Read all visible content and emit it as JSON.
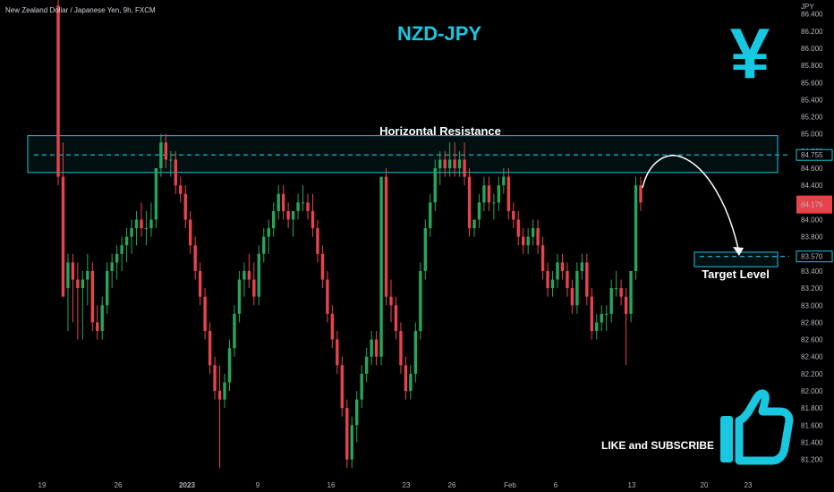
{
  "header": {
    "symbol": "New Zealand Dollar / Japanese Yen, 9h, FXCM",
    "title": "NZD-JPY",
    "currency": "JPY"
  },
  "annotations": {
    "resistance": "Horizontal Resistance",
    "target": "Target Level",
    "cta": "LIKE and SUBSCRIBE",
    "yen_glyph": "¥"
  },
  "price_labels": {
    "resistance_price": "84.755",
    "current_price": "84.176",
    "target_price": "83.570"
  },
  "colors": {
    "accent": "#18c7e0",
    "up": "#26a65b",
    "down": "#e8434a",
    "current_label": "#e8434a"
  },
  "chart_data": {
    "type": "candlestick",
    "title": "NZD-JPY",
    "ylabel": "JPY",
    "ylim": [
      81.05,
      86.48
    ],
    "y_ticks": [
      "81.200",
      "81.400",
      "81.600",
      "81.800",
      "82.000",
      "82.200",
      "82.400",
      "82.600",
      "82.800",
      "83.000",
      "83.200",
      "83.400",
      "83.600",
      "83.800",
      "84.000",
      "84.200",
      "84.400",
      "84.600",
      "84.800",
      "85.000",
      "85.200",
      "85.400",
      "85.600",
      "85.800",
      "86.000",
      "86.200",
      "86.400"
    ],
    "x_ticks": [
      "19",
      "26",
      "2023",
      "9",
      "16",
      "23",
      "26",
      "Feb",
      "6",
      "13",
      "20",
      "23"
    ],
    "resistance_zone": [
      84.55,
      84.98
    ],
    "resistance_level": 84.755,
    "target_zone": [
      83.45,
      83.62
    ],
    "target_level": 83.57,
    "current_price": 84.176,
    "candles": [
      [
        86.5,
        86.8,
        84.4,
        84.5
      ],
      [
        84.5,
        84.9,
        83.1,
        83.1
      ],
      [
        83.2,
        83.6,
        82.7,
        83.5
      ],
      [
        83.5,
        83.6,
        82.8,
        83.3
      ],
      [
        83.3,
        83.5,
        82.6,
        83.2
      ],
      [
        83.2,
        83.4,
        82.6,
        83.3
      ],
      [
        83.3,
        83.6,
        83.0,
        83.4
      ],
      [
        83.4,
        83.5,
        82.7,
        82.8
      ],
      [
        82.8,
        83.0,
        82.6,
        82.7
      ],
      [
        82.7,
        83.1,
        82.6,
        83.0
      ],
      [
        83.0,
        83.5,
        82.9,
        83.4
      ],
      [
        83.4,
        83.6,
        83.2,
        83.5
      ],
      [
        83.5,
        83.7,
        83.3,
        83.6
      ],
      [
        83.6,
        83.8,
        83.4,
        83.7
      ],
      [
        83.7,
        83.9,
        83.5,
        83.8
      ],
      [
        83.8,
        84.0,
        83.6,
        83.9
      ],
      [
        83.9,
        84.1,
        83.7,
        84.0
      ],
      [
        84.0,
        84.2,
        83.8,
        83.9
      ],
      [
        83.9,
        84.1,
        83.7,
        83.9
      ],
      [
        83.9,
        84.2,
        83.8,
        84.0
      ],
      [
        84.0,
        84.6,
        83.9,
        84.6
      ],
      [
        84.6,
        85.0,
        84.5,
        84.9
      ],
      [
        84.9,
        85.0,
        84.6,
        84.7
      ],
      [
        84.7,
        84.8,
        84.5,
        84.7
      ],
      [
        84.7,
        84.8,
        84.3,
        84.4
      ],
      [
        84.4,
        84.5,
        84.2,
        84.3
      ],
      [
        84.3,
        84.4,
        83.9,
        84.0
      ],
      [
        84.0,
        84.1,
        83.6,
        83.7
      ],
      [
        83.7,
        83.8,
        83.3,
        83.4
      ],
      [
        83.4,
        83.5,
        83.0,
        83.1
      ],
      [
        83.1,
        83.2,
        82.6,
        82.7
      ],
      [
        82.7,
        82.8,
        82.2,
        82.3
      ],
      [
        82.3,
        82.4,
        81.9,
        82.0
      ],
      [
        82.0,
        82.3,
        81.1,
        81.9
      ],
      [
        81.9,
        82.2,
        81.8,
        82.1
      ],
      [
        82.1,
        82.6,
        82.0,
        82.5
      ],
      [
        82.5,
        83.0,
        82.4,
        82.9
      ],
      [
        82.9,
        83.4,
        82.8,
        83.3
      ],
      [
        83.3,
        83.5,
        83.1,
        83.4
      ],
      [
        83.4,
        83.6,
        83.2,
        83.3
      ],
      [
        83.3,
        83.5,
        83.0,
        83.1
      ],
      [
        83.1,
        83.7,
        83.0,
        83.6
      ],
      [
        83.6,
        83.9,
        83.5,
        83.8
      ],
      [
        83.8,
        84.0,
        83.6,
        83.9
      ],
      [
        83.9,
        84.2,
        83.8,
        84.1
      ],
      [
        84.1,
        84.4,
        84.0,
        84.3
      ],
      [
        84.3,
        84.4,
        84.0,
        84.1
      ],
      [
        84.1,
        84.2,
        83.9,
        84.0
      ],
      [
        84.0,
        84.1,
        83.8,
        84.1
      ],
      [
        84.1,
        84.3,
        84.0,
        84.2
      ],
      [
        84.2,
        84.4,
        84.1,
        84.2
      ],
      [
        84.2,
        84.3,
        84.0,
        84.1
      ],
      [
        84.1,
        84.3,
        83.8,
        83.9
      ],
      [
        83.9,
        84.0,
        83.5,
        83.6
      ],
      [
        83.6,
        83.7,
        83.2,
        83.3
      ],
      [
        83.3,
        83.4,
        82.8,
        82.9
      ],
      [
        82.9,
        83.0,
        82.5,
        82.6
      ],
      [
        82.6,
        82.7,
        82.2,
        82.3
      ],
      [
        82.3,
        82.4,
        81.7,
        81.8
      ],
      [
        81.8,
        81.9,
        81.1,
        81.2
      ],
      [
        81.2,
        81.7,
        81.1,
        81.6
      ],
      [
        81.6,
        82.0,
        81.4,
        81.9
      ],
      [
        81.9,
        82.3,
        81.8,
        82.2
      ],
      [
        82.2,
        82.5,
        82.1,
        82.4
      ],
      [
        82.4,
        82.7,
        82.3,
        82.6
      ],
      [
        82.6,
        82.7,
        82.3,
        82.4
      ],
      [
        82.4,
        84.5,
        82.3,
        84.5
      ],
      [
        84.5,
        84.6,
        83.0,
        83.1
      ],
      [
        83.1,
        83.3,
        82.8,
        83.0
      ],
      [
        83.0,
        83.1,
        82.6,
        82.7
      ],
      [
        82.7,
        82.8,
        82.2,
        82.3
      ],
      [
        82.3,
        82.4,
        81.9,
        82.0
      ],
      [
        82.0,
        82.3,
        81.9,
        82.2
      ],
      [
        82.2,
        82.8,
        82.1,
        82.7
      ],
      [
        82.7,
        83.5,
        82.6,
        83.4
      ],
      [
        83.4,
        84.0,
        83.3,
        83.9
      ],
      [
        83.9,
        84.3,
        83.8,
        84.2
      ],
      [
        84.2,
        84.7,
        84.1,
        84.6
      ],
      [
        84.6,
        84.8,
        84.4,
        84.7
      ],
      [
        84.7,
        84.8,
        84.5,
        84.6
      ],
      [
        84.6,
        84.9,
        84.5,
        84.7
      ],
      [
        84.7,
        84.9,
        84.5,
        84.6
      ],
      [
        84.6,
        84.8,
        84.5,
        84.7
      ],
      [
        84.7,
        84.9,
        84.4,
        84.5
      ],
      [
        84.5,
        84.6,
        83.8,
        83.9
      ],
      [
        83.9,
        84.0,
        83.8,
        84.0
      ],
      [
        84.0,
        84.3,
        83.9,
        84.2
      ],
      [
        84.2,
        84.5,
        84.1,
        84.4
      ],
      [
        84.4,
        84.5,
        84.1,
        84.2
      ],
      [
        84.2,
        84.3,
        84.0,
        84.2
      ],
      [
        84.2,
        84.5,
        84.1,
        84.4
      ],
      [
        84.4,
        84.6,
        84.3,
        84.5
      ],
      [
        84.5,
        84.6,
        84.0,
        84.1
      ],
      [
        84.1,
        84.2,
        83.9,
        84.0
      ],
      [
        84.0,
        84.1,
        83.7,
        83.8
      ],
      [
        83.8,
        83.9,
        83.6,
        83.7
      ],
      [
        83.7,
        83.9,
        83.6,
        83.8
      ],
      [
        83.8,
        84.0,
        83.7,
        83.9
      ],
      [
        83.9,
        84.0,
        83.6,
        83.7
      ],
      [
        83.7,
        83.8,
        83.3,
        83.4
      ],
      [
        83.4,
        83.5,
        83.1,
        83.2
      ],
      [
        83.2,
        83.4,
        83.1,
        83.3
      ],
      [
        83.3,
        83.6,
        83.2,
        83.5
      ],
      [
        83.5,
        83.6,
        83.3,
        83.4
      ],
      [
        83.4,
        83.5,
        83.1,
        83.2
      ],
      [
        83.2,
        83.3,
        82.9,
        83.0
      ],
      [
        83.0,
        83.5,
        82.9,
        83.4
      ],
      [
        83.4,
        83.6,
        83.3,
        83.5
      ],
      [
        83.5,
        83.6,
        83.0,
        83.1
      ],
      [
        83.1,
        83.2,
        82.6,
        82.7
      ],
      [
        82.7,
        82.9,
        82.6,
        82.8
      ],
      [
        82.8,
        83.0,
        82.7,
        82.9
      ],
      [
        82.9,
        83.0,
        82.7,
        82.9
      ],
      [
        82.9,
        83.3,
        82.8,
        83.2
      ],
      [
        83.2,
        83.4,
        83.1,
        83.2
      ],
      [
        83.2,
        83.3,
        83.0,
        83.1
      ],
      [
        83.1,
        83.2,
        82.3,
        82.9
      ],
      [
        82.9,
        83.4,
        82.8,
        83.4
      ],
      [
        83.4,
        84.5,
        83.3,
        84.4
      ],
      [
        84.4,
        84.5,
        84.1,
        84.2
      ]
    ]
  }
}
